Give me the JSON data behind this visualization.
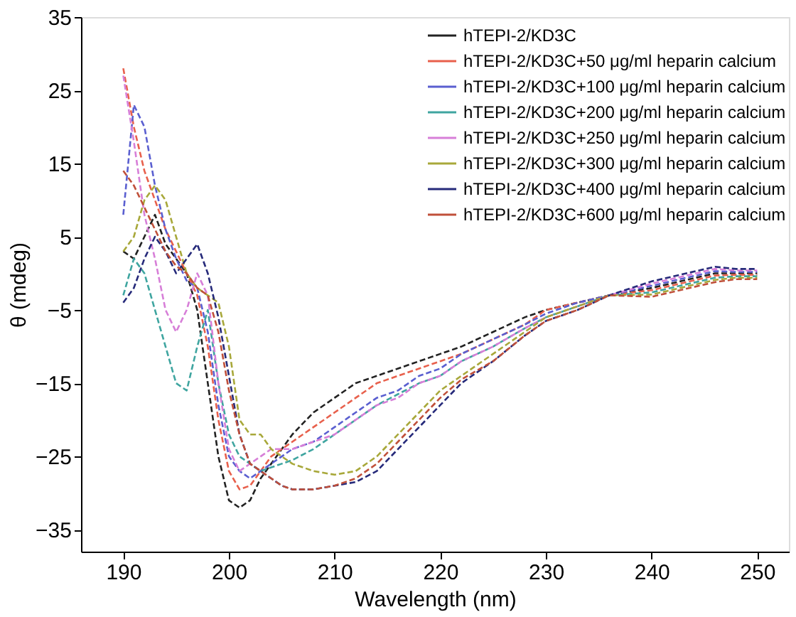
{
  "chart_data": {
    "type": "line",
    "xlabel": "Wavelength (nm)",
    "ylabel": "θ (mdeg)",
    "x": [
      190,
      191,
      192,
      193,
      194,
      195,
      196,
      197,
      198,
      199,
      200,
      201,
      202,
      203,
      204,
      205,
      206,
      208,
      210,
      212,
      214,
      216,
      218,
      220,
      222,
      225,
      228,
      230,
      233,
      236,
      240,
      243,
      246,
      248,
      250
    ],
    "xlim": [
      186,
      253
    ],
    "xticks": [
      190,
      200,
      210,
      220,
      230,
      240,
      250
    ],
    "ylim": [
      -38,
      35
    ],
    "yticks": [
      35,
      25,
      15,
      5,
      -5,
      -15,
      -25,
      -35
    ],
    "grid": false,
    "legend": "top right",
    "line_style": "dashed",
    "marker": "none",
    "series": [
      {
        "name": "hTEPI-2/KD3C",
        "color": "#222222",
        "values": [
          3,
          2,
          5,
          8,
          4,
          2,
          0,
          -5,
          -15,
          -25,
          -31,
          -32,
          -31,
          -28,
          -26,
          -24,
          -22,
          -19,
          -17,
          -15,
          -14,
          -13,
          -12,
          -11,
          -10,
          -8,
          -6,
          -5,
          -4,
          -3,
          -2,
          -1,
          0,
          0,
          0
        ]
      },
      {
        "name": "hTEPI-2/KD3C+50 μg/ml heparin calcium",
        "color": "#e8604c",
        "values": [
          28,
          20,
          14,
          10,
          6,
          3,
          0,
          -3,
          -10,
          -20,
          -27,
          -29.5,
          -29,
          -27,
          -25,
          -24,
          -23,
          -21,
          -19,
          -17,
          -15,
          -14,
          -13,
          -12,
          -11,
          -9,
          -7,
          -5,
          -4,
          -3,
          -2.3,
          -1.3,
          -0.3,
          -0.2,
          -0.2
        ]
      },
      {
        "name": "hTEPI-2/KD3C+100 μg/ml heparin calcium",
        "color": "#5a5fd0",
        "values": [
          8,
          23,
          20,
          12,
          6,
          2,
          -1,
          -2,
          -8,
          -18,
          -25,
          -27,
          -28,
          -27,
          -26,
          -25,
          -24,
          -23,
          -21,
          -19,
          -17,
          -16,
          -14,
          -13,
          -11,
          -9,
          -7,
          -5.5,
          -4,
          -3,
          -1.7,
          -0.7,
          0.3,
          0.2,
          0.2
        ]
      },
      {
        "name": "hTEPI-2/KD3C+200 μg/ml heparin calcium",
        "color": "#3fa5a0",
        "values": [
          -3,
          2,
          0,
          -5,
          -10,
          -15,
          -16,
          -10,
          -5,
          -15,
          -22,
          -25,
          -26,
          -27,
          -26.5,
          -26,
          -25.5,
          -24,
          -22,
          -20,
          -18,
          -16.5,
          -15,
          -14,
          -12,
          -10,
          -7.5,
          -6,
          -4.5,
          -3,
          -2.6,
          -1.6,
          -0.6,
          -0.4,
          -0.4
        ]
      },
      {
        "name": "hTEPI-2/KD3C+250 μg/ml heparin calcium",
        "color": "#d77fd8",
        "values": [
          27,
          18,
          8,
          2,
          -5,
          -8,
          -5,
          0,
          -3,
          -15,
          -24,
          -27,
          -26,
          -25,
          -24,
          -24,
          -24,
          -23,
          -22,
          -20,
          -18,
          -17,
          -15,
          -14,
          -12,
          -10,
          -7.5,
          -6,
          -4.5,
          -3,
          -1.4,
          -0.4,
          0.6,
          0.4,
          0.4
        ]
      },
      {
        "name": "hTEPI-2/KD3C+300 μg/ml heparin calcium",
        "color": "#a8a83a",
        "values": [
          3,
          5,
          10,
          12,
          10,
          5,
          0,
          -2,
          -3,
          -4,
          -10,
          -20,
          -22,
          -22,
          -24,
          -25,
          -26,
          -27,
          -27.5,
          -27,
          -25,
          -22,
          -19,
          -16,
          -14,
          -11,
          -8,
          -6,
          -4.5,
          -3,
          -2.9,
          -1.9,
          -0.9,
          -0.6,
          -0.6
        ]
      },
      {
        "name": "hTEPI-2/KD3C+400 μg/ml heparin calcium",
        "color": "#262a7a",
        "values": [
          -4,
          -2,
          2,
          5,
          3,
          0,
          2,
          4,
          0,
          -6,
          -14,
          -22,
          -26,
          -27,
          -28,
          -29,
          -29.5,
          -29.5,
          -29,
          -28.5,
          -27,
          -24,
          -21,
          -18,
          -15,
          -12,
          -8.5,
          -6.5,
          -5,
          -3,
          -1.1,
          -0.1,
          0.9,
          0.6,
          0.6
        ]
      },
      {
        "name": "hTEPI-2/KD3C+600 μg/ml heparin calcium",
        "color": "#c0503a",
        "values": [
          14,
          12,
          9,
          6,
          3,
          1,
          0,
          -2,
          -3,
          -8,
          -16,
          -22,
          -26,
          -27,
          -28,
          -29,
          -29.5,
          -29.5,
          -29,
          -28,
          -26,
          -23,
          -20,
          -17,
          -14.5,
          -12,
          -8.5,
          -6.5,
          -5,
          -3,
          -3.2,
          -2.2,
          -1.2,
          -0.8,
          -0.8
        ]
      }
    ]
  }
}
